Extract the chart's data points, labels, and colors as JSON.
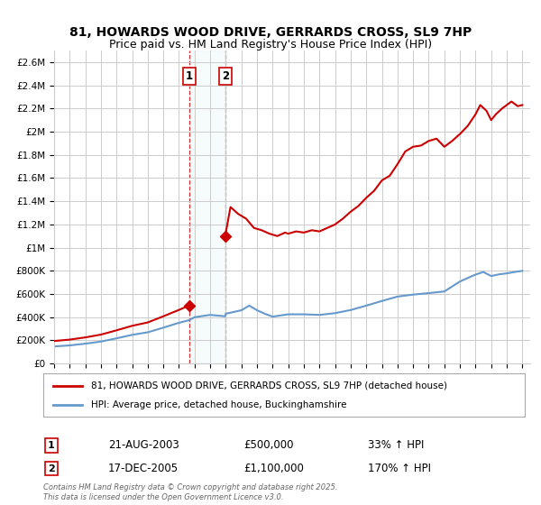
{
  "title_line1": "81, HOWARDS WOOD DRIVE, GERRARDS CROSS, SL9 7HP",
  "title_line2": "Price paid vs. HM Land Registry's House Price Index (HPI)",
  "legend_label_red": "81, HOWARDS WOOD DRIVE, GERRARDS CROSS, SL9 7HP (detached house)",
  "legend_label_blue": "HPI: Average price, detached house, Buckinghamshire",
  "annotation1_label": "1",
  "annotation1_date": "21-AUG-2003",
  "annotation1_price": "£500,000",
  "annotation1_hpi": "33% ↑ HPI",
  "annotation1_year": 2003.64,
  "annotation1_value": 500000,
  "annotation2_label": "2",
  "annotation2_date": "17-DEC-2005",
  "annotation2_price": "£1,100,000",
  "annotation2_hpi": "170% ↑ HPI",
  "annotation2_year": 2005.96,
  "annotation2_value": 1100000,
  "footer": "Contains HM Land Registry data © Crown copyright and database right 2025.\nThis data is licensed under the Open Government Licence v3.0.",
  "yticks": [
    0,
    200000,
    400000,
    600000,
    800000,
    1000000,
    1200000,
    1400000,
    1600000,
    1800000,
    2000000,
    2200000,
    2400000,
    2600000
  ],
  "ytick_labels": [
    "£0",
    "£200K",
    "£400K",
    "£600K",
    "£800K",
    "£1M",
    "£1.2M",
    "£1.4M",
    "£1.6M",
    "£1.8M",
    "£2M",
    "£2.2M",
    "£2.4M",
    "£2.6M"
  ],
  "xmin": 1995,
  "xmax": 2025.5,
  "ymin": 0,
  "ymax": 2700000,
  "red_color": "#cc0000",
  "blue_color": "#6699cc",
  "background_color": "#ffffff",
  "grid_color": "#cccccc",
  "hpi_years": [
    1995,
    1996,
    1997,
    1998,
    1999,
    2000,
    2001,
    2002,
    2003,
    2003.64,
    2004,
    2005,
    2005.96,
    2006,
    2007,
    2007.5,
    2008,
    2008.5,
    2009,
    2009.5,
    2010,
    2011,
    2012,
    2013,
    2014,
    2015,
    2016,
    2017,
    2018,
    2019,
    2020,
    2021,
    2022,
    2022.5,
    2023,
    2023.5,
    2024,
    2024.5,
    2025
  ],
  "hpi_values": [
    148000,
    157000,
    172000,
    190000,
    218000,
    248000,
    270000,
    310000,
    352000,
    374000,
    400000,
    420000,
    408000,
    430000,
    460000,
    500000,
    460000,
    430000,
    405000,
    415000,
    425000,
    425000,
    420000,
    435000,
    462000,
    500000,
    540000,
    578000,
    595000,
    608000,
    622000,
    708000,
    768000,
    790000,
    755000,
    770000,
    778000,
    790000,
    800000
  ],
  "red_years": [
    1995,
    1996,
    1997,
    1998,
    1999,
    2000,
    2001,
    2002,
    2003,
    2003.64,
    2005.96,
    2006.3,
    2006.8,
    2007.3,
    2007.8,
    2008.3,
    2008.8,
    2009.3,
    2009.8,
    2010,
    2010.5,
    2011,
    2011.5,
    2012,
    2012.5,
    2013,
    2013.5,
    2014,
    2014.5,
    2015,
    2015.5,
    2016,
    2016.5,
    2017,
    2017.5,
    2018,
    2018.5,
    2019,
    2019.5,
    2020,
    2020.5,
    2021,
    2021.5,
    2022,
    2022.3,
    2022.7,
    2023,
    2023.3,
    2023.7,
    2024,
    2024.3,
    2024.7,
    2025
  ],
  "red_values": [
    195000,
    207000,
    226000,
    250000,
    287000,
    326000,
    355000,
    408000,
    463000,
    500000,
    1100000,
    1350000,
    1290000,
    1250000,
    1170000,
    1150000,
    1120000,
    1100000,
    1130000,
    1120000,
    1140000,
    1130000,
    1150000,
    1140000,
    1170000,
    1200000,
    1250000,
    1310000,
    1360000,
    1430000,
    1490000,
    1580000,
    1620000,
    1720000,
    1830000,
    1870000,
    1880000,
    1920000,
    1940000,
    1870000,
    1920000,
    1980000,
    2050000,
    2150000,
    2230000,
    2180000,
    2100000,
    2150000,
    2200000,
    2230000,
    2260000,
    2220000,
    2230000
  ]
}
